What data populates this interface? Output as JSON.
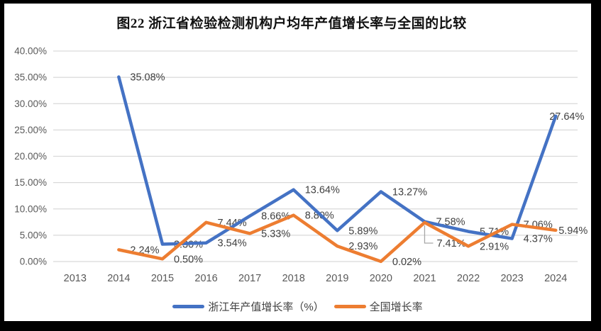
{
  "title": "图22 浙江省检验检测机构户均年产值增长率与全国的比较",
  "chart_data": {
    "type": "line",
    "x": [
      "2013",
      "2014",
      "2015",
      "2016",
      "2017",
      "2018",
      "2019",
      "2020",
      "2021",
      "2022",
      "2023",
      "2024"
    ],
    "series": [
      {
        "name": "浙江年产值增长率（%）",
        "color": "#4472C4",
        "values": [
          null,
          35.08,
          3.3,
          3.54,
          8.66,
          13.64,
          5.89,
          13.27,
          7.58,
          5.71,
          4.37,
          27.64
        ],
        "labels": [
          "",
          "35.08%",
          "3.30%",
          "3.54%",
          "8.66%",
          "13.64%",
          "5.89%",
          "13.27%",
          "7.58%",
          "5.71%",
          "4.37%",
          "27.64%"
        ]
      },
      {
        "name": "全国增长率",
        "color": "#ED7D31",
        "values": [
          null,
          2.24,
          0.5,
          7.44,
          5.33,
          8.8,
          2.93,
          0.02,
          7.41,
          2.91,
          7.06,
          5.94
        ],
        "labels": [
          "",
          "2.24%",
          "0.50%",
          "7.44%",
          "5.33%",
          "8.80%",
          "2.93%",
          "0.02%",
          "7.41%",
          "2.91%",
          "7.06%",
          "5.94%"
        ]
      }
    ],
    "ylim": [
      0,
      40
    ],
    "y_tick_step": 5,
    "y_ticks": [
      "0.00%",
      "5.00%",
      "10.00%",
      "15.00%",
      "20.00%",
      "25.00%",
      "30.00%",
      "35.00%",
      "40.00%"
    ],
    "grid": true,
    "legend_position": "bottom",
    "colors": {
      "grid": "#D9D9D9",
      "axis_text": "#595959",
      "label_text": "#404040",
      "leader": "#A6A6A6",
      "frame": "#000000",
      "background": "#FFFFFF"
    }
  }
}
